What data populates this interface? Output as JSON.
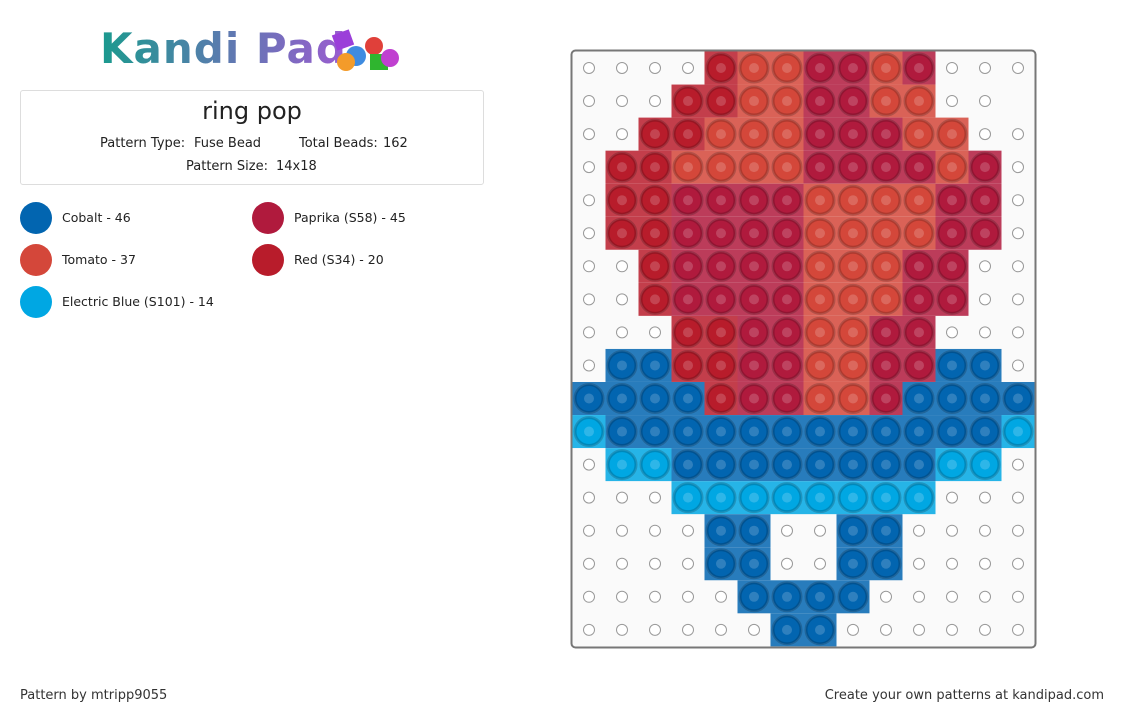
{
  "header": {
    "logo": "Kandi Pad"
  },
  "pattern": {
    "title": "ring pop",
    "type_label": "Pattern Type:",
    "type_value": "Fuse Bead",
    "beads_label": "Total Beads:",
    "beads_value": "162",
    "size_label": "Pattern Size:",
    "size_value": "14x18"
  },
  "legend": [
    {
      "label": "Cobalt - 46",
      "color": "#0265b0"
    },
    {
      "label": "Paprika (S58) - 45",
      "color": "#b01a3d"
    },
    {
      "label": "Tomato - 37",
      "color": "#d4473a"
    },
    {
      "label": "Red (S34) - 20",
      "color": "#b81c2b"
    },
    {
      "label": "Electric Blue (S101) - 14",
      "color": "#00a7e3"
    }
  ],
  "footer": {
    "author": "Pattern by mtripp9055",
    "link": "Create your own patterns at kandipad.com"
  }
}
